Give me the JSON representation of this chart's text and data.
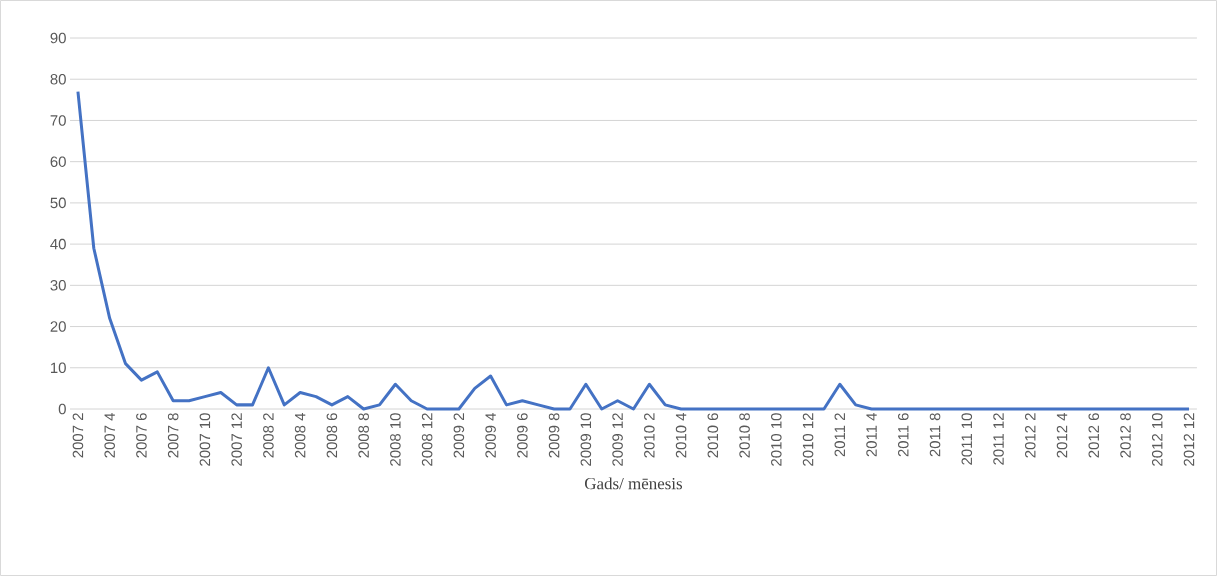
{
  "chart_data": {
    "type": "line",
    "xlabel": "Gads/ mēnesis",
    "categories": [
      "2007 2",
      null,
      "2007 4",
      null,
      "2007 6",
      null,
      "2007 8",
      null,
      "2007 10",
      null,
      "2007 12",
      null,
      "2008 2",
      null,
      "2008 4",
      null,
      "2008 6",
      null,
      "2008 8",
      null,
      "2008 10",
      null,
      "2008 12",
      null,
      "2009 2",
      null,
      "2009 4",
      null,
      "2009 6",
      null,
      "2009 8",
      null,
      "2009 10",
      null,
      "2009 12",
      null,
      "2010 2",
      null,
      "2010 4",
      null,
      "2010 6",
      null,
      "2010 8",
      null,
      "2010 10",
      null,
      "2010 12",
      null,
      "2011 2",
      null,
      "2011 4",
      null,
      "2011 6",
      null,
      "2011 8",
      null,
      "2011 10",
      null,
      "2011 12",
      null,
      "2012 2",
      null,
      "2012 4",
      null,
      "2012 6",
      null,
      "2012 8",
      null,
      "2012 10",
      null,
      "2012 12"
    ],
    "series": [
      {
        "color": "#4472c4",
        "values": [
          77,
          39,
          22,
          11,
          7,
          9,
          2,
          2,
          3,
          4,
          1,
          1,
          10,
          1,
          4,
          3,
          1,
          3,
          0,
          1,
          6,
          2,
          0,
          0,
          0,
          5,
          8,
          1,
          2,
          1,
          0,
          0,
          6,
          0,
          2,
          0,
          6,
          1,
          0,
          0,
          0,
          0,
          0,
          0,
          0,
          0,
          0,
          0,
          6,
          1,
          0,
          0,
          0,
          0,
          0,
          0,
          0,
          0,
          0,
          0,
          0,
          0,
          0,
          0,
          0,
          0,
          0,
          0,
          0,
          0,
          0
        ]
      }
    ],
    "ylim": [
      0,
      90
    ],
    "yticks": [
      0,
      10,
      20,
      30,
      40,
      50,
      60,
      70,
      80,
      90
    ],
    "grid": "y",
    "marker": "none",
    "line_style": "solid"
  }
}
